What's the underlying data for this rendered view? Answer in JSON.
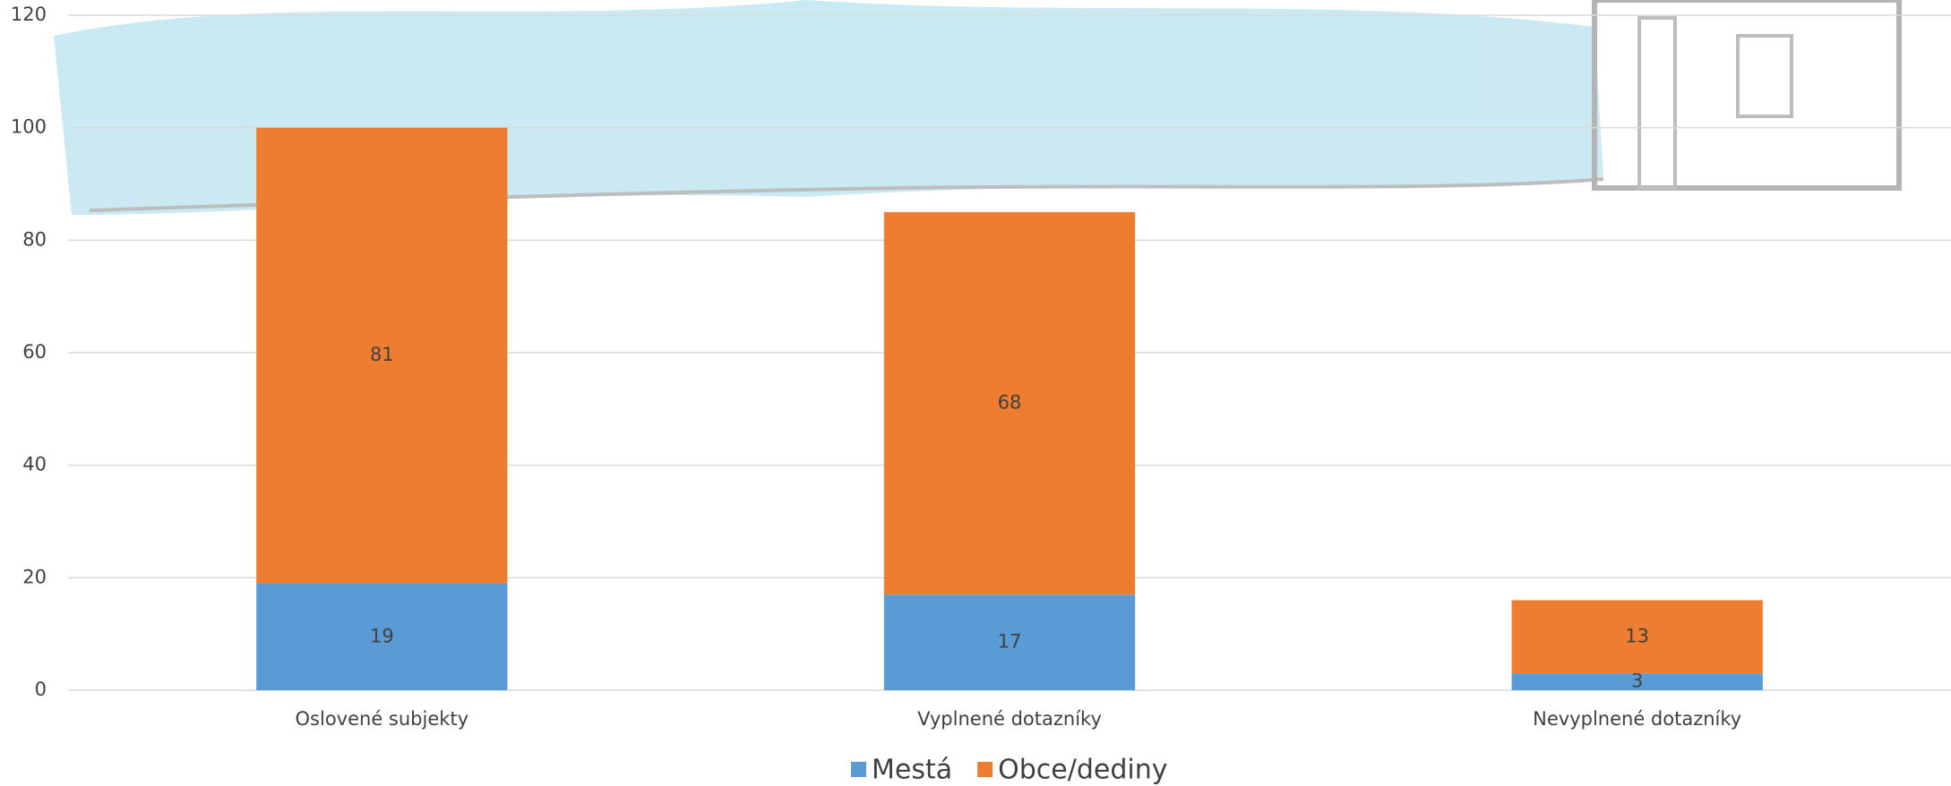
{
  "chart_data": {
    "type": "stacked_bar",
    "categories": [
      "Oslovené subjekty",
      "Vyplnené dotazníky",
      "Nevyplnené dotazníky"
    ],
    "series": [
      {
        "name": "Mestá",
        "color": "#5b9bd5",
        "values": [
          19,
          17,
          3
        ]
      },
      {
        "name": "Obce/dediny",
        "color": "#ed7d31",
        "values": [
          81,
          68,
          13
        ]
      }
    ],
    "ylim": [
      0,
      120
    ],
    "yticks": [
      0,
      20,
      40,
      60,
      80,
      100,
      120
    ],
    "grid": true,
    "legend": "bottom"
  }
}
